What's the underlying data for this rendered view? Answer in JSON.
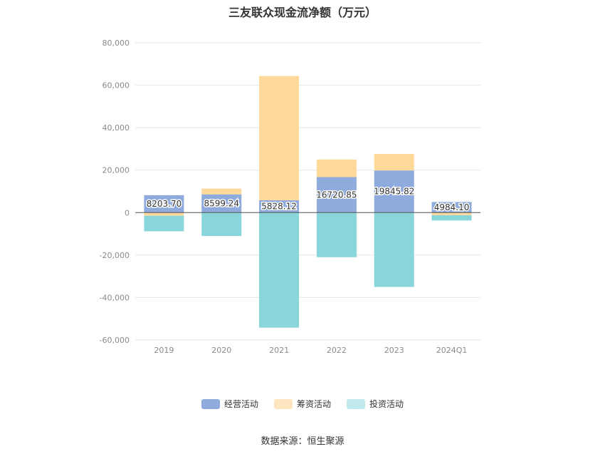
{
  "title": "三友联众现金流净额（万元）",
  "source_label": "数据来源：恒生聚源",
  "chart_data": {
    "type": "bar",
    "stacked": true,
    "categories": [
      "2019",
      "2020",
      "2021",
      "2022",
      "2023",
      "2024Q1"
    ],
    "series": [
      {
        "name": "经营活动",
        "values": [
          8203.7,
          8599.24,
          5828.12,
          16720.85,
          19845.82,
          4984.1
        ],
        "color": "#8faadc"
      },
      {
        "name": "筹资活动",
        "values": [
          -1500,
          2700,
          58500,
          8300,
          7800,
          -1200
        ],
        "color": "#ffd99a"
      },
      {
        "name": "投资活动",
        "values": [
          -7300,
          -11000,
          -54200,
          -21000,
          -35000,
          -2500
        ],
        "color": "#88d6d9"
      }
    ],
    "data_labels": [
      "8203.70",
      "8599.24",
      "5828.12",
      "16720.85",
      "19845.82",
      "4984.10"
    ],
    "y_ticks": [
      "80,000",
      "60,000",
      "40,000",
      "20,000",
      "0",
      "-20,000",
      "-40,000",
      "-60,000"
    ],
    "ylim": [
      -60000,
      80000
    ],
    "grid": true,
    "legend_position": "bottom"
  },
  "legend": {
    "items": [
      {
        "label": "经营活动",
        "color": "#8faadc"
      },
      {
        "label": "筹资活动",
        "color": "#ffe5c0"
      },
      {
        "label": "投资活动",
        "color": "#bfe9ea"
      }
    ]
  }
}
